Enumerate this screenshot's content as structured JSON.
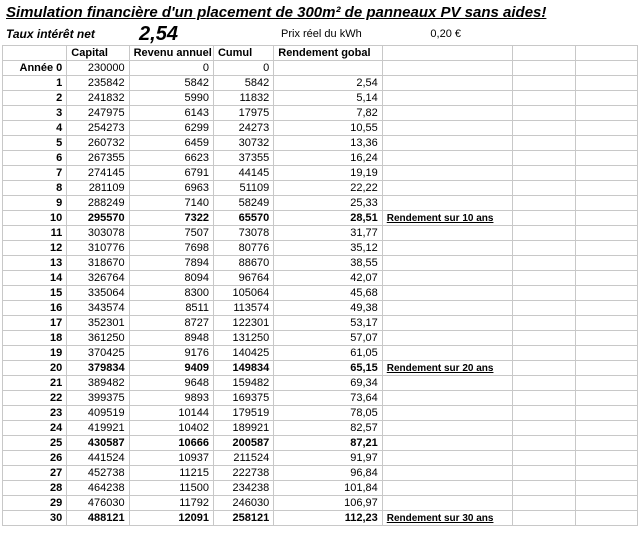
{
  "title": "Simulation financière d'un placement de 300m² de panneaux PV sans aides!",
  "taux_label": "Taux intérêt net",
  "taux_value": "2,54",
  "prix_label": "Prix réel du kWh",
  "prix_value": "0,20 €",
  "headers": {
    "year": "Année 0",
    "capital": "Capital",
    "revenu": "Revenu annuel",
    "cumul": "Cumul",
    "rendement": "Rendement gobal"
  },
  "initial": {
    "capital": "230000",
    "revenu": "0",
    "cumul": "0"
  },
  "rows": [
    {
      "y": "1",
      "cap": "235842",
      "rev": "5842",
      "cum": "5842",
      "rend": "2,54",
      "note": "",
      "bold": false
    },
    {
      "y": "2",
      "cap": "241832",
      "rev": "5990",
      "cum": "11832",
      "rend": "5,14",
      "note": "",
      "bold": false
    },
    {
      "y": "3",
      "cap": "247975",
      "rev": "6143",
      "cum": "17975",
      "rend": "7,82",
      "note": "",
      "bold": false
    },
    {
      "y": "4",
      "cap": "254273",
      "rev": "6299",
      "cum": "24273",
      "rend": "10,55",
      "note": "",
      "bold": false
    },
    {
      "y": "5",
      "cap": "260732",
      "rev": "6459",
      "cum": "30732",
      "rend": "13,36",
      "note": "",
      "bold": false
    },
    {
      "y": "6",
      "cap": "267355",
      "rev": "6623",
      "cum": "37355",
      "rend": "16,24",
      "note": "",
      "bold": false
    },
    {
      "y": "7",
      "cap": "274145",
      "rev": "6791",
      "cum": "44145",
      "rend": "19,19",
      "note": "",
      "bold": false
    },
    {
      "y": "8",
      "cap": "281109",
      "rev": "6963",
      "cum": "51109",
      "rend": "22,22",
      "note": "",
      "bold": false
    },
    {
      "y": "9",
      "cap": "288249",
      "rev": "7140",
      "cum": "58249",
      "rend": "25,33",
      "note": "",
      "bold": false
    },
    {
      "y": "10",
      "cap": "295570",
      "rev": "7322",
      "cum": "65570",
      "rend": "28,51",
      "note": "Rendement sur 10 ans",
      "bold": true
    },
    {
      "y": "11",
      "cap": "303078",
      "rev": "7507",
      "cum": "73078",
      "rend": "31,77",
      "note": "",
      "bold": false
    },
    {
      "y": "12",
      "cap": "310776",
      "rev": "7698",
      "cum": "80776",
      "rend": "35,12",
      "note": "",
      "bold": false
    },
    {
      "y": "13",
      "cap": "318670",
      "rev": "7894",
      "cum": "88670",
      "rend": "38,55",
      "note": "",
      "bold": false
    },
    {
      "y": "14",
      "cap": "326764",
      "rev": "8094",
      "cum": "96764",
      "rend": "42,07",
      "note": "",
      "bold": false
    },
    {
      "y": "15",
      "cap": "335064",
      "rev": "8300",
      "cum": "105064",
      "rend": "45,68",
      "note": "",
      "bold": false
    },
    {
      "y": "16",
      "cap": "343574",
      "rev": "8511",
      "cum": "113574",
      "rend": "49,38",
      "note": "",
      "bold": false
    },
    {
      "y": "17",
      "cap": "352301",
      "rev": "8727",
      "cum": "122301",
      "rend": "53,17",
      "note": "",
      "bold": false
    },
    {
      "y": "18",
      "cap": "361250",
      "rev": "8948",
      "cum": "131250",
      "rend": "57,07",
      "note": "",
      "bold": false
    },
    {
      "y": "19",
      "cap": "370425",
      "rev": "9176",
      "cum": "140425",
      "rend": "61,05",
      "note": "",
      "bold": false
    },
    {
      "y": "20",
      "cap": "379834",
      "rev": "9409",
      "cum": "149834",
      "rend": "65,15",
      "note": "Rendement sur 20 ans",
      "bold": true
    },
    {
      "y": "21",
      "cap": "389482",
      "rev": "9648",
      "cum": "159482",
      "rend": "69,34",
      "note": "",
      "bold": false
    },
    {
      "y": "22",
      "cap": "399375",
      "rev": "9893",
      "cum": "169375",
      "rend": "73,64",
      "note": "",
      "bold": false
    },
    {
      "y": "23",
      "cap": "409519",
      "rev": "10144",
      "cum": "179519",
      "rend": "78,05",
      "note": "",
      "bold": false
    },
    {
      "y": "24",
      "cap": "419921",
      "rev": "10402",
      "cum": "189921",
      "rend": "82,57",
      "note": "",
      "bold": false
    },
    {
      "y": "25",
      "cap": "430587",
      "rev": "10666",
      "cum": "200587",
      "rend": "87,21",
      "note": "",
      "bold": true
    },
    {
      "y": "26",
      "cap": "441524",
      "rev": "10937",
      "cum": "211524",
      "rend": "91,97",
      "note": "",
      "bold": false
    },
    {
      "y": "27",
      "cap": "452738",
      "rev": "11215",
      "cum": "222738",
      "rend": "96,84",
      "note": "",
      "bold": false
    },
    {
      "y": "28",
      "cap": "464238",
      "rev": "11500",
      "cum": "234238",
      "rend": "101,84",
      "note": "",
      "bold": false
    },
    {
      "y": "29",
      "cap": "476030",
      "rev": "11792",
      "cum": "246030",
      "rend": "106,97",
      "note": "",
      "bold": false
    },
    {
      "y": "30",
      "cap": "488121",
      "rev": "12091",
      "cum": "258121",
      "rend": "112,23",
      "note": "Rendement sur 30 ans",
      "bold": true
    }
  ],
  "style": {
    "grid_color": "#c8c8c8",
    "background_color": "#ffffff",
    "font_size_body": 11,
    "font_size_title": 15,
    "font_size_taux": 20
  }
}
